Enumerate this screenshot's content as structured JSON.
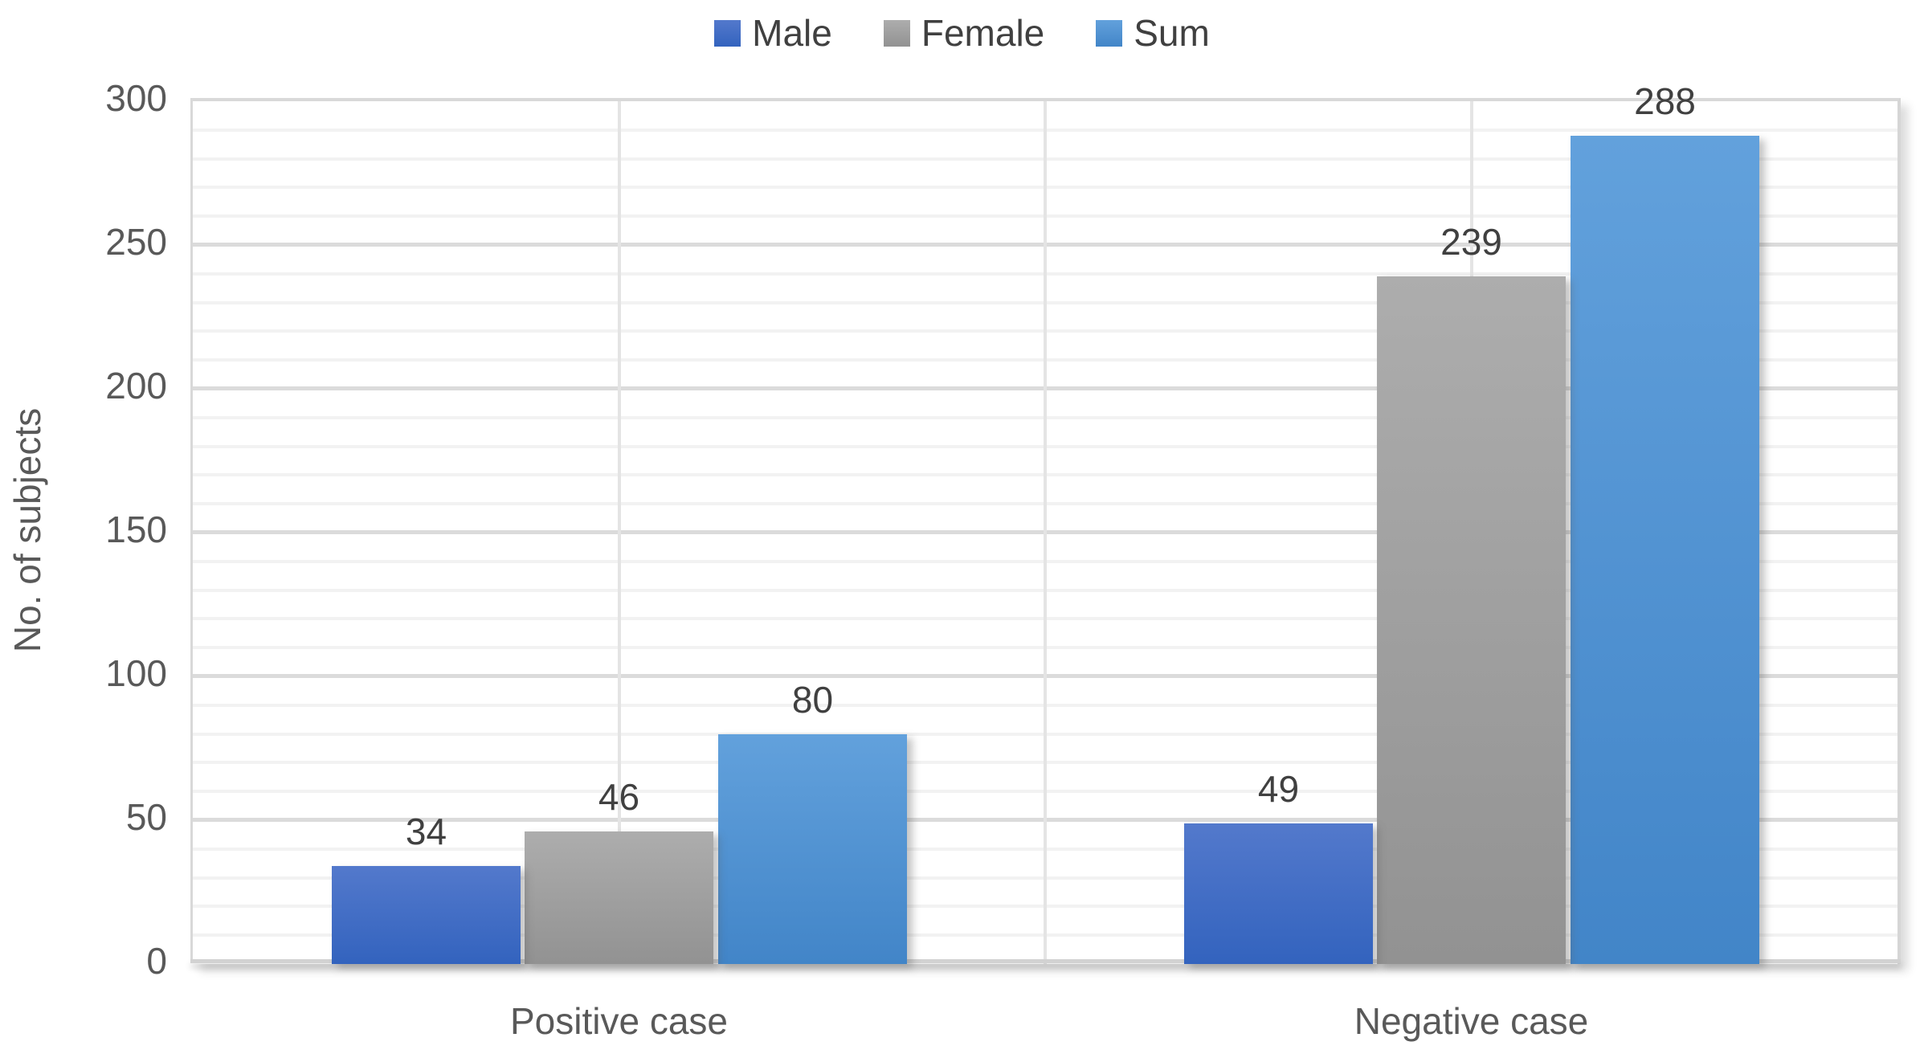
{
  "chart_data": {
    "type": "bar",
    "title": "",
    "categories": [
      "Positive case",
      "Negative case"
    ],
    "series": [
      {
        "name": "Male",
        "values": [
          34,
          49
        ],
        "color": "#4472C4",
        "fill_top": "#5379CC",
        "fill_bottom": "#3363BE"
      },
      {
        "name": "Female",
        "values": [
          46,
          239
        ],
        "color": "#A5A5A5",
        "fill_top": "#ADADAD",
        "fill_bottom": "#929292"
      },
      {
        "name": "Sum",
        "values": [
          80,
          288
        ],
        "color": "#5B9BD5",
        "fill_top": "#62A1DC",
        "fill_bottom": "#4285C8"
      }
    ],
    "data_labels": [
      [
        34,
        46,
        80
      ],
      [
        49,
        239,
        288
      ]
    ],
    "xlabel": "",
    "ylabel": "No. of subjects",
    "ylim": [
      0,
      300
    ],
    "yticks": [
      0,
      50,
      100,
      150,
      200,
      250,
      300
    ],
    "ytick_step": 50,
    "minor_grid_step": 10,
    "grid": true,
    "legend_position": "top"
  }
}
